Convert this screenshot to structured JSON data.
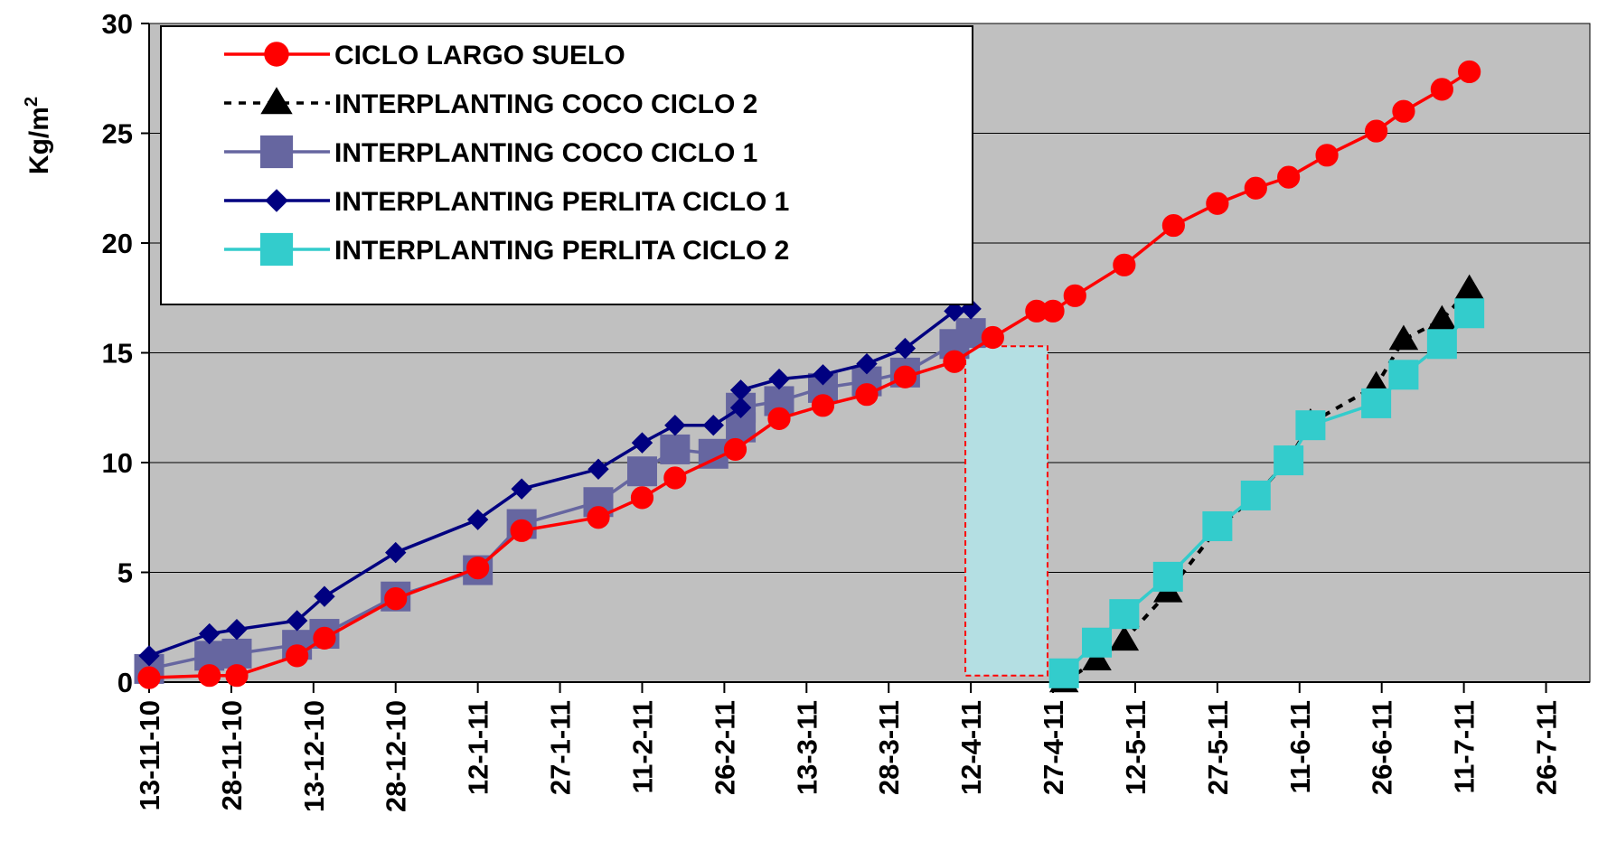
{
  "chart_data": {
    "type": "line",
    "title": "",
    "xlabel": "",
    "ylabel": "Kg/m",
    "ylabel_sup": "2",
    "ylim": [
      0,
      30
    ],
    "yticks": [
      0,
      5,
      10,
      15,
      20,
      25,
      30
    ],
    "xlim": [
      "2010-11-13",
      "2011-08-03"
    ],
    "xticks": [
      "13-11-10",
      "28-11-10",
      "13-12-10",
      "28-12-10",
      "12-1-11",
      "27-1-11",
      "11-2-11",
      "26-2-11",
      "13-3-11",
      "28-3-11",
      "12-4-11",
      "27-4-11",
      "12-5-11",
      "27-5-11",
      "11-6-11",
      "26-6-11",
      "11-7-11",
      "26-7-11"
    ],
    "grid": "horizontal",
    "legend_position": "top-left",
    "plot_background": "#c0c0c0",
    "series": [
      {
        "name": "CICLO LARGO SUELO",
        "color": "#ff0000",
        "marker": "circle",
        "line_style": "solid",
        "points": [
          [
            "2010-11-13",
            0.2
          ],
          [
            "2010-11-24",
            0.3
          ],
          [
            "2010-11-29",
            0.3
          ],
          [
            "2010-12-10",
            1.2
          ],
          [
            "2010-12-15",
            2.0
          ],
          [
            "2010-12-28",
            3.8
          ],
          [
            "2011-01-12",
            5.2
          ],
          [
            "2011-01-20",
            6.9
          ],
          [
            "2011-02-03",
            7.5
          ],
          [
            "2011-02-11",
            8.4
          ],
          [
            "2011-02-17",
            9.3
          ],
          [
            "2011-02-28",
            10.6
          ],
          [
            "2011-03-08",
            12.0
          ],
          [
            "2011-03-16",
            12.6
          ],
          [
            "2011-03-24",
            13.1
          ],
          [
            "2011-03-31",
            13.9
          ],
          [
            "2011-04-09",
            14.6
          ],
          [
            "2011-04-16",
            15.7
          ],
          [
            "2011-04-24",
            16.9
          ],
          [
            "2011-04-27",
            16.9
          ],
          [
            "2011-05-01",
            17.6
          ],
          [
            "2011-05-10",
            19.0
          ],
          [
            "2011-05-19",
            20.8
          ],
          [
            "2011-05-27",
            21.8
          ],
          [
            "2011-06-03",
            22.5
          ],
          [
            "2011-06-09",
            23.0
          ],
          [
            "2011-06-16",
            24.0
          ],
          [
            "2011-06-25",
            25.1
          ],
          [
            "2011-06-30",
            26.0
          ],
          [
            "2011-07-07",
            27.0
          ],
          [
            "2011-07-12",
            27.8
          ]
        ]
      },
      {
        "name": "INTERPLANTING COCO CICLO 2",
        "color": "#000000",
        "marker": "triangle",
        "line_style": "dashed",
        "points": [
          [
            "2011-04-29",
            0.0
          ],
          [
            "2011-05-05",
            1.0
          ],
          [
            "2011-05-10",
            1.9
          ],
          [
            "2011-05-18",
            4.1
          ],
          [
            "2011-05-27",
            7.0
          ],
          [
            "2011-06-03",
            8.5
          ],
          [
            "2011-06-09",
            10.1
          ],
          [
            "2011-06-13",
            11.8
          ],
          [
            "2011-06-25",
            13.5
          ],
          [
            "2011-06-30",
            15.6
          ],
          [
            "2011-07-07",
            16.5
          ],
          [
            "2011-07-12",
            17.9
          ]
        ]
      },
      {
        "name": "INTERPLANTING COCO CICLO 1",
        "color": "#6666a0",
        "marker": "square",
        "line_style": "solid",
        "points": [
          [
            "2010-11-13",
            0.6
          ],
          [
            "2010-11-24",
            1.2
          ],
          [
            "2010-11-29",
            1.3
          ],
          [
            "2010-12-10",
            1.7
          ],
          [
            "2010-12-15",
            2.2
          ],
          [
            "2010-12-28",
            3.9
          ],
          [
            "2011-01-12",
            5.1
          ],
          [
            "2011-01-20",
            7.2
          ],
          [
            "2011-02-03",
            8.2
          ],
          [
            "2011-02-11",
            9.6
          ],
          [
            "2011-02-17",
            10.6
          ],
          [
            "2011-02-24",
            10.4
          ],
          [
            "2011-03-01",
            11.6
          ],
          [
            "2011-03-01",
            12.5
          ],
          [
            "2011-03-08",
            12.8
          ],
          [
            "2011-03-16",
            13.4
          ],
          [
            "2011-03-24",
            13.7
          ],
          [
            "2011-03-31",
            14.1
          ],
          [
            "2011-04-09",
            15.4
          ],
          [
            "2011-04-12",
            15.9
          ]
        ]
      },
      {
        "name": "INTERPLANTING PERLITA CICLO 1",
        "color": "#000080",
        "marker": "diamond",
        "line_style": "solid",
        "points": [
          [
            "2010-11-13",
            1.2
          ],
          [
            "2010-11-24",
            2.2
          ],
          [
            "2010-11-29",
            2.4
          ],
          [
            "2010-12-10",
            2.8
          ],
          [
            "2010-12-15",
            3.9
          ],
          [
            "2010-12-28",
            5.9
          ],
          [
            "2011-01-12",
            7.4
          ],
          [
            "2011-01-20",
            8.8
          ],
          [
            "2011-02-03",
            9.7
          ],
          [
            "2011-02-11",
            10.9
          ],
          [
            "2011-02-17",
            11.7
          ],
          [
            "2011-02-24",
            11.7
          ],
          [
            "2011-03-01",
            12.5
          ],
          [
            "2011-03-01",
            13.3
          ],
          [
            "2011-03-08",
            13.8
          ],
          [
            "2011-03-16",
            14.0
          ],
          [
            "2011-03-24",
            14.5
          ],
          [
            "2011-03-31",
            15.2
          ],
          [
            "2011-04-09",
            16.9
          ],
          [
            "2011-04-12",
            17.0
          ]
        ]
      },
      {
        "name": "INTERPLANTING PERLITA CICLO 2",
        "color": "#33cccc",
        "marker": "square",
        "line_style": "solid",
        "points": [
          [
            "2011-04-29",
            0.4
          ],
          [
            "2011-05-05",
            1.8
          ],
          [
            "2011-05-10",
            3.1
          ],
          [
            "2011-05-18",
            4.8
          ],
          [
            "2011-05-27",
            7.1
          ],
          [
            "2011-06-03",
            8.5
          ],
          [
            "2011-06-09",
            10.1
          ],
          [
            "2011-06-13",
            11.7
          ],
          [
            "2011-06-25",
            12.7
          ],
          [
            "2011-06-30",
            14.0
          ],
          [
            "2011-07-07",
            15.4
          ],
          [
            "2011-07-12",
            16.8
          ]
        ]
      }
    ],
    "highlight_band": {
      "x_start": "2011-04-11",
      "x_end": "2011-04-26",
      "y_range": [
        0.3,
        15.3
      ],
      "fill": "#b4dfe3",
      "border": "#ff0000",
      "border_style": "dashed"
    }
  }
}
